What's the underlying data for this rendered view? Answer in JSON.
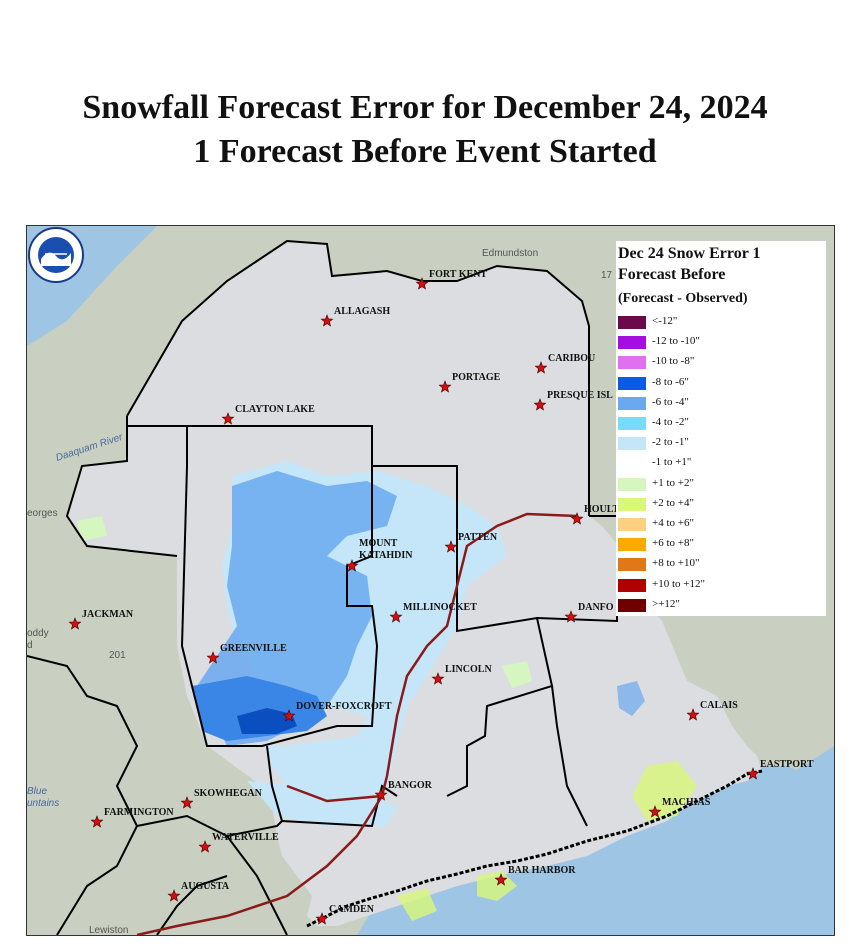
{
  "title": {
    "line1": "Snowfall Forecast Error for December 24, 2024",
    "line2": "1 Forecast Before Event Started"
  },
  "legend": {
    "title_line1": "Dec 24 Snow Error 1",
    "title_line2": "Forecast Before",
    "subtitle": "(Forecast - Observed)",
    "items": [
      {
        "label": "<-12\"",
        "color": "#6b0a4a"
      },
      {
        "label": "-12 to -10\"",
        "color": "#a40ee0"
      },
      {
        "label": "-10 to -8\"",
        "color": "#e070f0"
      },
      {
        "label": "-8 to -6\"",
        "color": "#0a5ae6"
      },
      {
        "label": "-6 to -4\"",
        "color": "#6aa8f0"
      },
      {
        "label": "-4 to -2\"",
        "color": "#78dcf8"
      },
      {
        "label": "-2 to -1\"",
        "color": "#c4e6f8"
      },
      {
        "label": "-1 to +1\"",
        "color": "#ffffff"
      },
      {
        "label": "+1 to +2\"",
        "color": "#d6f6c0"
      },
      {
        "label": "+2 to +4\"",
        "color": "#d8f878"
      },
      {
        "label": "+4 to +6\"",
        "color": "#ffd080"
      },
      {
        "label": "+6 to +8\"",
        "color": "#ffa800"
      },
      {
        "label": "+8 to +10\"",
        "color": "#e07818"
      },
      {
        "label": "+10 to +12\"",
        "color": "#b00000"
      },
      {
        "label": ">+12\"",
        "color": "#700000"
      }
    ]
  },
  "cities": [
    {
      "name": "FORT KENT"
    },
    {
      "name": "ALLAGASH"
    },
    {
      "name": "CARIBOU"
    },
    {
      "name": "PORTAGE"
    },
    {
      "name": "PRESQUE ISL"
    },
    {
      "name": "CLAYTON LAKE"
    },
    {
      "name": "HOULT"
    },
    {
      "name": "MOUNT"
    },
    {
      "name": "KATAHDIN"
    },
    {
      "name": "PATTEN"
    },
    {
      "name": "MILLINOCKET"
    },
    {
      "name": "DANFO"
    },
    {
      "name": "JACKMAN"
    },
    {
      "name": "GREENVILLE"
    },
    {
      "name": "LINCOLN"
    },
    {
      "name": "DOVER-FOXCROFT"
    },
    {
      "name": "CALAIS"
    },
    {
      "name": "EASTPORT"
    },
    {
      "name": "BANGOR"
    },
    {
      "name": "SKOWHEGAN"
    },
    {
      "name": "FARMINGTON"
    },
    {
      "name": "MACHIAS"
    },
    {
      "name": "WATERVILLE"
    },
    {
      "name": "BAR HARBOR"
    },
    {
      "name": "AUGUSTA"
    },
    {
      "name": "CAMDEN"
    }
  ],
  "geo_labels": {
    "edmundston": "Edmundston",
    "georges": "eorges",
    "daaquam": "Daaquam River",
    "route201": "201",
    "route17": "17",
    "blue": "Blue",
    "mountains": "untains",
    "lewiston": "Lewiston",
    "oddy": "oddy",
    "d": "d"
  },
  "colors": {
    "land": "#dcdde0",
    "outside_land": "#c9cfc4",
    "water": "#9ec6e4",
    "boundary": "#000000",
    "highway": "#8b1a1a",
    "star": "#d01010"
  }
}
